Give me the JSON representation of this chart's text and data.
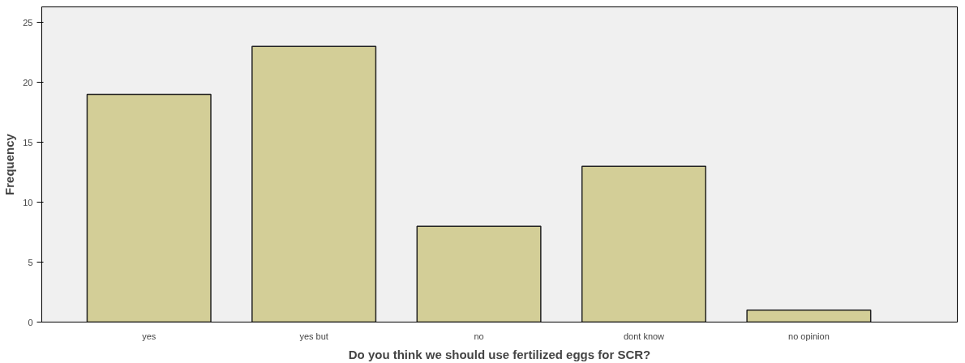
{
  "chart_data": {
    "type": "bar",
    "xlabel": "Do you think we should use fertilized eggs for SCR?",
    "ylabel": "Frequency",
    "categories": [
      "yes",
      "yes but",
      "no",
      "dont know",
      "no opinion"
    ],
    "values": [
      19,
      23,
      8,
      13,
      1
    ],
    "color": "#d3ce97",
    "ylim": [
      0,
      26.3
    ],
    "yticks": [
      0,
      5,
      10,
      15,
      20,
      25
    ],
    "grid": false
  }
}
